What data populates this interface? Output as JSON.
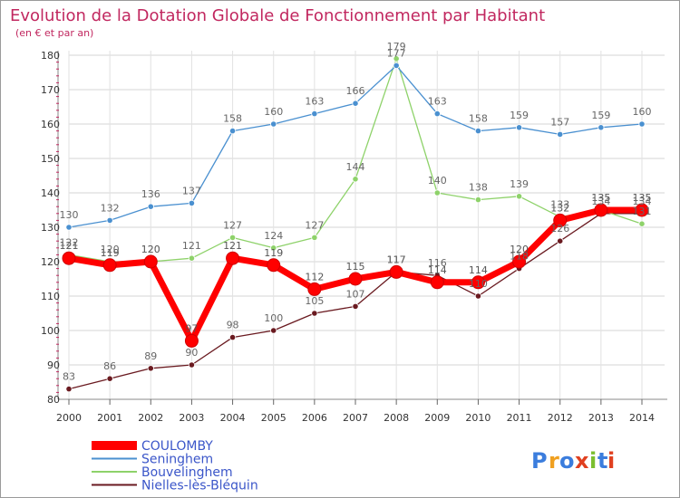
{
  "chart_data": {
    "type": "line",
    "title": "Evolution de la Dotation Globale de Fonctionnement par Habitant",
    "subtitle": "(en € et par an)",
    "xlabel": "",
    "ylabel": "",
    "x": [
      "2000",
      "2001",
      "2002",
      "2003",
      "2004",
      "2005",
      "2006",
      "2007",
      "2008",
      "2009",
      "2010",
      "2011",
      "2012",
      "2013",
      "2014"
    ],
    "ylim": [
      80,
      180
    ],
    "yticks": [
      80,
      90,
      100,
      110,
      120,
      130,
      140,
      150,
      160,
      170,
      180
    ],
    "grid": true,
    "legend_position": "bottom-left",
    "series": [
      {
        "name": "COULOMBY",
        "color": "#ff0000",
        "values": [
          121,
          119,
          120,
          97,
          121,
          119,
          112,
          115,
          117,
          114,
          114,
          120,
          132,
          135,
          135
        ],
        "labels": [
          "121",
          "119",
          "120",
          "97",
          "121",
          "119",
          "112",
          "115",
          "117",
          "114",
          "114",
          "120",
          "132",
          "135",
          "135"
        ]
      },
      {
        "name": "Seninghem",
        "color": "#4a90d0",
        "values": [
          130,
          132,
          136,
          137,
          158,
          160,
          163,
          166,
          177,
          163,
          158,
          159,
          157,
          159,
          160
        ],
        "labels": [
          "130",
          "132",
          "136",
          "137",
          "158",
          "160",
          "163",
          "166",
          "177",
          "163",
          "158",
          "159",
          "157",
          "159",
          "160"
        ]
      },
      {
        "name": "Bouvelinghem",
        "color": "#8ed26a",
        "values": [
          122,
          120,
          120,
          121,
          127,
          124,
          127,
          144,
          179,
          140,
          138,
          139,
          133,
          135,
          131
        ],
        "labels": [
          "122",
          "120",
          "120",
          "121",
          "127",
          "124",
          "127",
          "144",
          "179",
          "140",
          "138",
          "139",
          "133",
          "135",
          "131"
        ]
      },
      {
        "name": "Nielles-lès-Bléquin",
        "color": "#6a1a20",
        "values": [
          83,
          86,
          89,
          90,
          98,
          100,
          105,
          107,
          117,
          116,
          110,
          118,
          126,
          134,
          134
        ],
        "labels": [
          "83",
          "86",
          "89",
          "90",
          "98",
          "100",
          "105",
          "107",
          "117",
          "116",
          "110",
          "118",
          "126",
          "134",
          "134"
        ]
      }
    ]
  },
  "logo": {
    "letters": [
      "P",
      "r",
      "o",
      "x",
      "i",
      "t",
      "i"
    ],
    "colors": [
      "#3b7ddd",
      "#f0a020",
      "#3b7ddd",
      "#e04020",
      "#7bbf30",
      "#3b7ddd",
      "#e04020"
    ]
  }
}
